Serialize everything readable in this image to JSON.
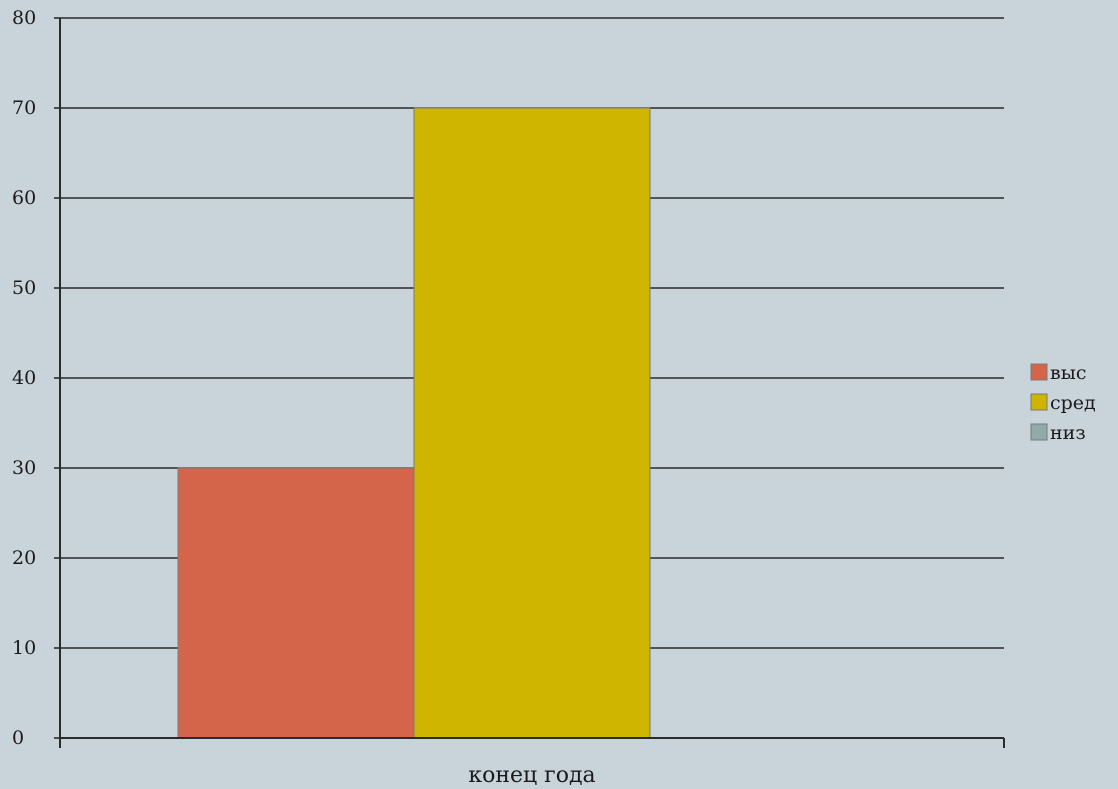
{
  "chart_data": {
    "type": "bar",
    "categories": [
      "конец года"
    ],
    "series": [
      {
        "name": "выс",
        "color": "#d4654a",
        "values": [
          30
        ]
      },
      {
        "name": "сред",
        "color": "#cfb400",
        "values": [
          70
        ]
      },
      {
        "name": "низ",
        "color": "#8faaa8",
        "values": [
          0
        ]
      }
    ],
    "ylim": [
      0,
      80
    ],
    "yticks": [
      0,
      10,
      20,
      30,
      40,
      50,
      60,
      70,
      80
    ],
    "grid": true,
    "legend_position": "right"
  }
}
